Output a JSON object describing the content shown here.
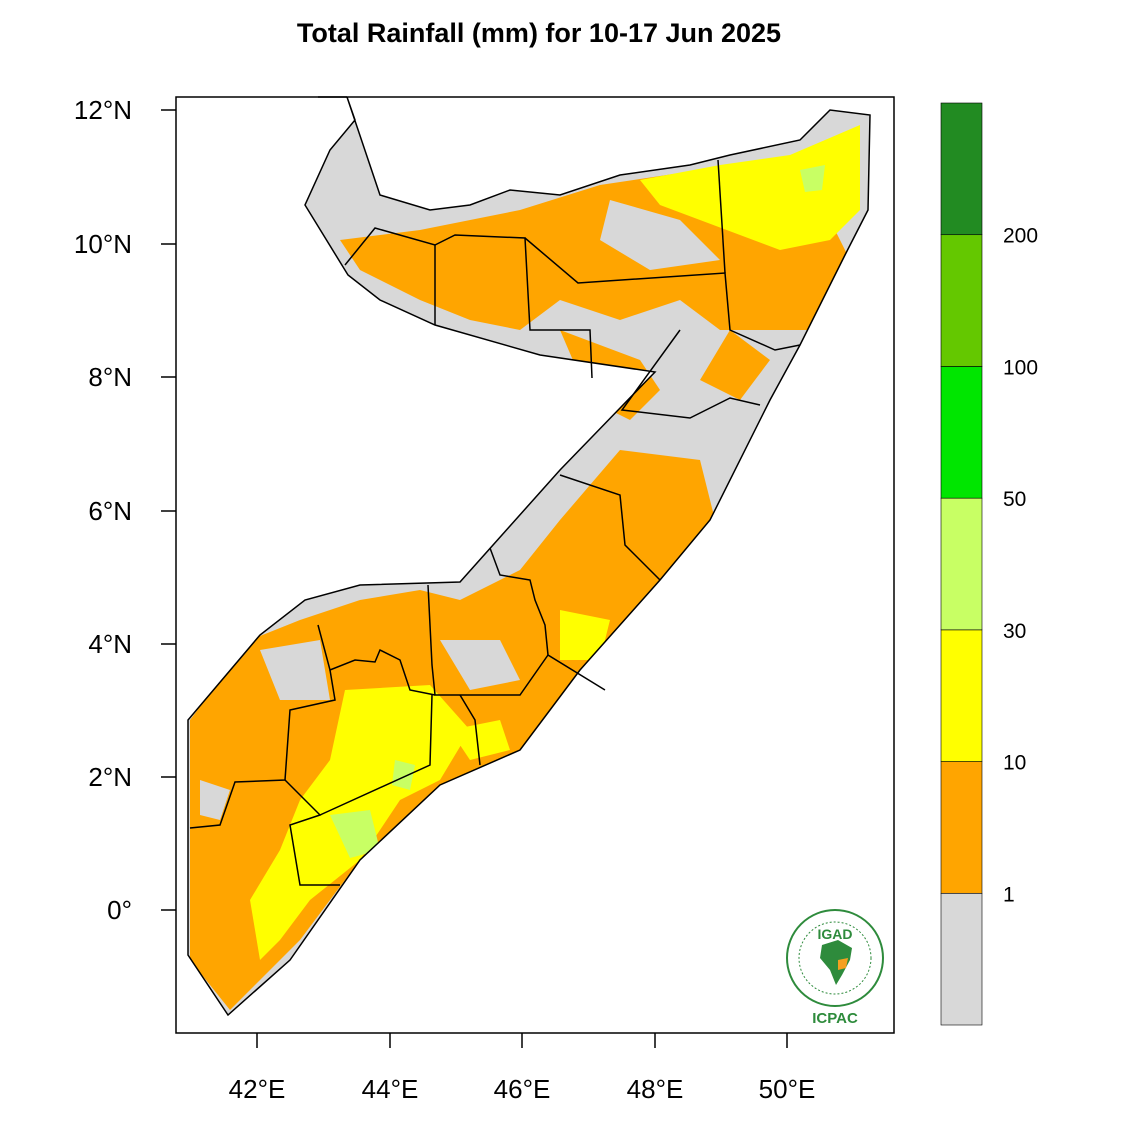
{
  "title": "Total Rainfall (mm) for 10-17 Jun 2025",
  "map": {
    "region": "Somalia",
    "lon_range": [
      40.8,
      51.6
    ],
    "lat_range": [
      -1.85,
      12.2
    ],
    "x_ticks": [
      "42°E",
      "44°E",
      "46°E",
      "48°E",
      "50°E"
    ],
    "y_ticks": [
      "12°N",
      "10°N",
      "8°N",
      "6°N",
      "4°N",
      "2°N",
      "0°"
    ]
  },
  "colorbar": {
    "bins": [
      {
        "label": "",
        "color": "#d8d8d8"
      },
      {
        "label": "1",
        "color": "#ffa500"
      },
      {
        "label": "10",
        "color": "#ffff00"
      },
      {
        "label": "30",
        "color": "#c8ff64"
      },
      {
        "label": "50",
        "color": "#00e600"
      },
      {
        "label": "100",
        "color": "#64c800"
      },
      {
        "label": "200",
        "color": "#228b22"
      }
    ]
  },
  "logo": {
    "top_text": "IGAD",
    "bottom_text": "ICPAC"
  }
}
